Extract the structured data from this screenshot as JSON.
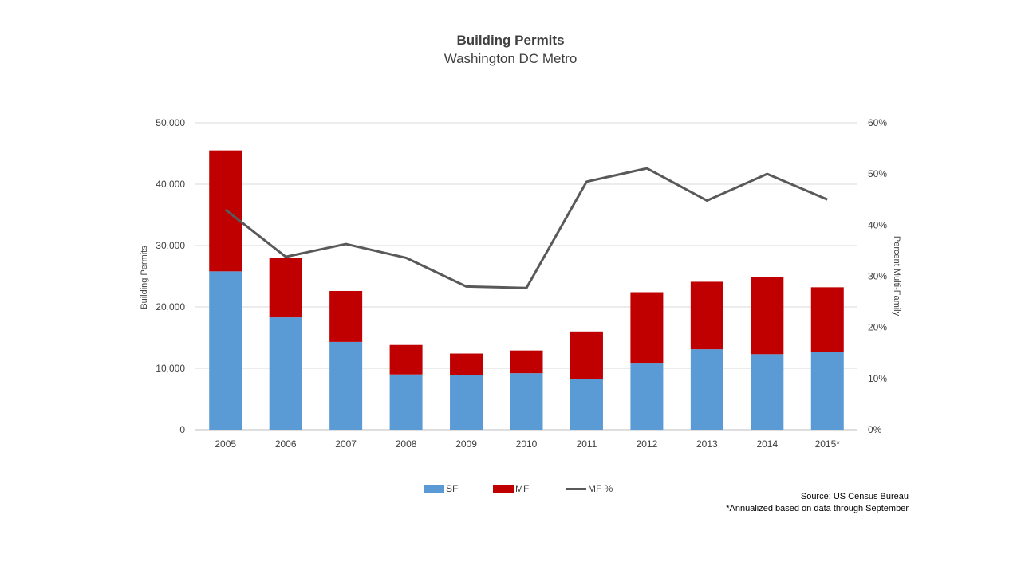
{
  "chart_data": {
    "type": "bar",
    "stacked": true,
    "title": "Building Permits",
    "subtitle": "Washington DC Metro",
    "categories": [
      "2005",
      "2006",
      "2007",
      "2008",
      "2009",
      "2010",
      "2011",
      "2012",
      "2013",
      "2014",
      "2015*"
    ],
    "series": [
      {
        "name": "SF",
        "type": "bar",
        "axis": "left",
        "color": "#5B9BD5",
        "values": [
          25800,
          18300,
          14300,
          9000,
          8900,
          9200,
          8200,
          10900,
          13100,
          12300,
          12600
        ]
      },
      {
        "name": "MF",
        "type": "bar",
        "axis": "left",
        "color": "#C00000",
        "values": [
          19700,
          9700,
          8300,
          4800,
          3500,
          3700,
          7800,
          11500,
          11000,
          12600,
          10600
        ]
      },
      {
        "name": "MF %",
        "type": "line",
        "axis": "right",
        "color": "#595959",
        "values": [
          43.0,
          33.8,
          36.3,
          33.6,
          28.0,
          27.7,
          48.5,
          51.1,
          44.8,
          50.0,
          45.0
        ]
      }
    ],
    "ylabel": "Building Permits",
    "ylim": [
      0,
      50000
    ],
    "yticks": [
      0,
      10000,
      20000,
      30000,
      40000,
      50000
    ],
    "ytick_labels": [
      "0",
      "10,000",
      "20,000",
      "30,000",
      "40,000",
      "50,000"
    ],
    "y2label": "Percent Multi-Family",
    "y2lim": [
      0,
      60
    ],
    "y2ticks": [
      0,
      10,
      20,
      30,
      40,
      50,
      60
    ],
    "y2tick_labels": [
      "0%",
      "10%",
      "20%",
      "30%",
      "40%",
      "50%",
      "60%"
    ],
    "grid": true,
    "legend": "bottom"
  },
  "source": "Source: US Census Bureau",
  "note": "*Annualized based on data through September"
}
